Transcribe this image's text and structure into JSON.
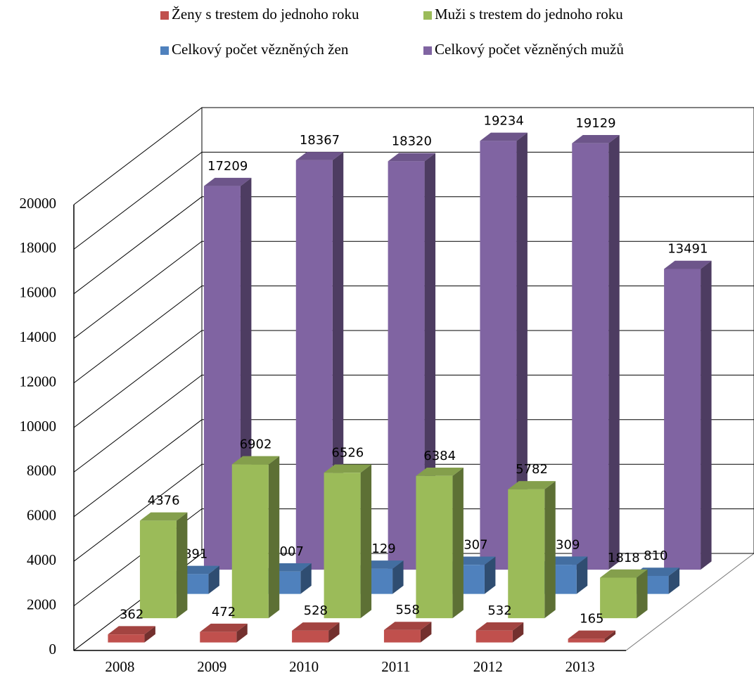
{
  "chart_data": {
    "type": "bar3d",
    "categories": [
      "2008",
      "2009",
      "2010",
      "2011",
      "2012",
      "2013"
    ],
    "series": [
      {
        "name": "Ženy s trestem do jednoho roku",
        "color": "#c0504d",
        "values": [
          362,
          472,
          528,
          558,
          532,
          165
        ]
      },
      {
        "name": "Muži s trestem do jednoho roku",
        "color": "#9bbb59",
        "values": [
          4376,
          6902,
          6526,
          6384,
          5782,
          1818
        ]
      },
      {
        "name": "Celkový počet vězněných žen",
        "color": "#4f81bd",
        "values": [
          891,
          1007,
          1129,
          1307,
          1309,
          810
        ]
      },
      {
        "name": "Celkový počet vězněných mužů",
        "color": "#8064a2",
        "values": [
          17209,
          18367,
          18320,
          19234,
          19129,
          13491
        ]
      }
    ],
    "ylim": [
      0,
      20000
    ],
    "yticks": [
      0,
      2000,
      4000,
      6000,
      8000,
      10000,
      12000,
      14000,
      16000,
      18000,
      20000
    ],
    "grid": true
  }
}
